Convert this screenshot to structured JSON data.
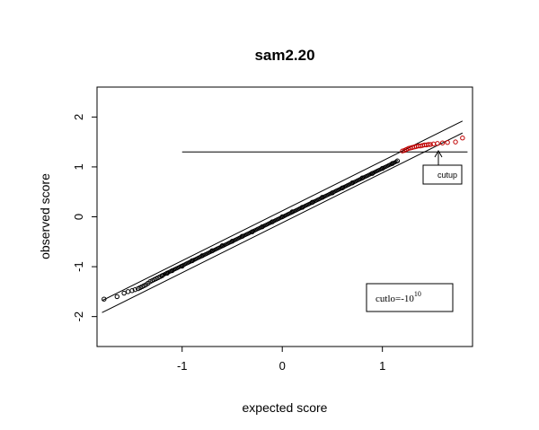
{
  "chart_data": {
    "type": "scatter",
    "title": "sam2.20",
    "xlabel": "expected score",
    "ylabel": "observed score",
    "xlim": [
      -1.85,
      1.9
    ],
    "ylim": [
      -2.6,
      2.6
    ],
    "xticks": [
      -1,
      0,
      1
    ],
    "yticks": [
      -2,
      -1,
      0,
      1,
      2
    ],
    "xtick_labels": [
      "-1",
      "0",
      "1"
    ],
    "ytick_labels": [
      "-2",
      "-1",
      "0",
      "1",
      "2"
    ],
    "grid": false,
    "point_color": "#000000",
    "significant_color": "#c00000",
    "cutup_threshold": 1.3,
    "band_offset": 0.12,
    "band_range": [
      -1.8,
      1.8
    ],
    "cutup_label": "cutup",
    "cutlo_label": "cutlo=",
    "cutlo_value": "-10",
    "cutlo_exponent": "10",
    "series": [
      {
        "x": [
          -1.78,
          -1.65,
          -1.58,
          -1.54,
          -1.5,
          -1.47,
          -1.44,
          -1.42,
          -1.4,
          -1.38,
          -1.36,
          -1.34,
          -1.32,
          -1.3,
          -1.28,
          -1.26,
          -1.24,
          -1.22,
          -1.2,
          -1.15,
          -1.1,
          -1.0,
          -0.9,
          -0.8,
          -0.7,
          -0.6,
          -0.5,
          -0.4,
          -0.3,
          -0.2,
          -0.1,
          0.0,
          0.1,
          0.2,
          0.3,
          0.4,
          0.5,
          0.6,
          0.7,
          0.8,
          0.9,
          1.0,
          1.1,
          1.15
        ],
        "y": [
          -1.65,
          -1.6,
          -1.53,
          -1.5,
          -1.48,
          -1.46,
          -1.44,
          -1.42,
          -1.4,
          -1.38,
          -1.36,
          -1.33,
          -1.3,
          -1.28,
          -1.26,
          -1.24,
          -1.22,
          -1.2,
          -1.18,
          -1.13,
          -1.08,
          -0.99,
          -0.88,
          -0.78,
          -0.68,
          -0.58,
          -0.49,
          -0.39,
          -0.3,
          -0.2,
          -0.1,
          0.0,
          0.1,
          0.19,
          0.29,
          0.39,
          0.48,
          0.58,
          0.68,
          0.78,
          0.87,
          0.97,
          1.07,
          1.12
        ]
      },
      {
        "x": [
          1.2,
          1.22,
          1.24,
          1.26,
          1.28,
          1.3,
          1.32,
          1.34,
          1.36,
          1.38,
          1.4,
          1.42,
          1.44,
          1.46,
          1.48,
          1.51,
          1.55,
          1.6,
          1.65,
          1.73,
          1.8
        ],
        "y": [
          1.32,
          1.33,
          1.35,
          1.37,
          1.38,
          1.39,
          1.4,
          1.41,
          1.42,
          1.42,
          1.43,
          1.44,
          1.44,
          1.45,
          1.45,
          1.46,
          1.47,
          1.48,
          1.49,
          1.5,
          1.58
        ]
      }
    ]
  }
}
